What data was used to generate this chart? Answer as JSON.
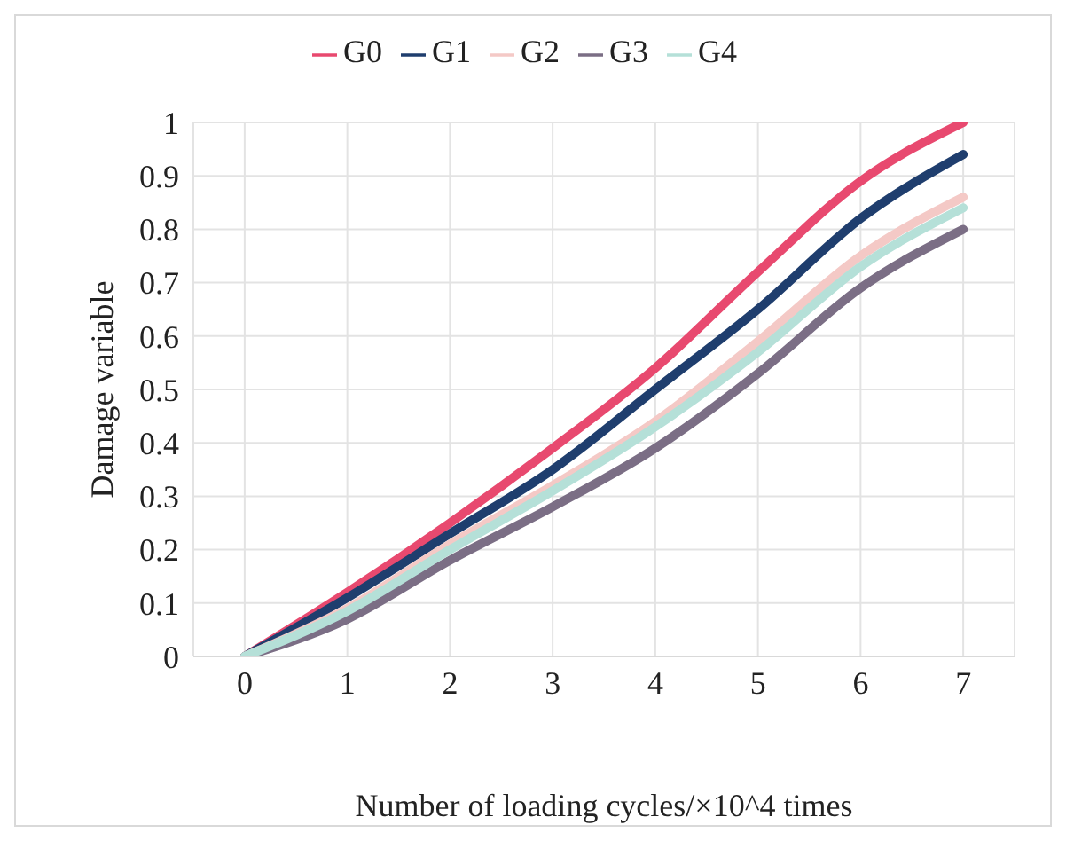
{
  "chart_data": {
    "type": "line",
    "xlabel": "Number of loading cycles/×10^4 times",
    "ylabel": "Damage variable",
    "x": [
      0,
      1,
      2,
      3,
      4,
      5,
      6,
      7
    ],
    "series": [
      {
        "name": "G0",
        "color": "#e8496f",
        "values": [
          0,
          0.12,
          0.25,
          0.39,
          0.54,
          0.72,
          0.89,
          1.0
        ]
      },
      {
        "name": "G1",
        "color": "#1f3e6e",
        "values": [
          0,
          0.11,
          0.23,
          0.35,
          0.5,
          0.65,
          0.82,
          0.94
        ]
      },
      {
        "name": "G2",
        "color": "#f4c9c6",
        "values": [
          0,
          0.09,
          0.21,
          0.32,
          0.44,
          0.59,
          0.75,
          0.86
        ]
      },
      {
        "name": "G3",
        "color": "#7b6e85",
        "values": [
          0,
          0.07,
          0.18,
          0.28,
          0.39,
          0.53,
          0.69,
          0.8
        ]
      },
      {
        "name": "G4",
        "color": "#b5e0d8",
        "values": [
          0,
          0.085,
          0.2,
          0.31,
          0.43,
          0.57,
          0.73,
          0.84
        ]
      }
    ],
    "xlim": [
      -0.5,
      7.5
    ],
    "xticks": [
      0,
      1,
      2,
      3,
      4,
      5,
      6,
      7
    ],
    "ylim": [
      0,
      1
    ],
    "yticks": [
      0,
      0.1,
      0.2,
      0.3,
      0.4,
      0.5,
      0.6,
      0.7,
      0.8,
      0.9,
      1
    ],
    "grid": true,
    "legend": "top",
    "marker": "none",
    "line_style": "solid"
  }
}
